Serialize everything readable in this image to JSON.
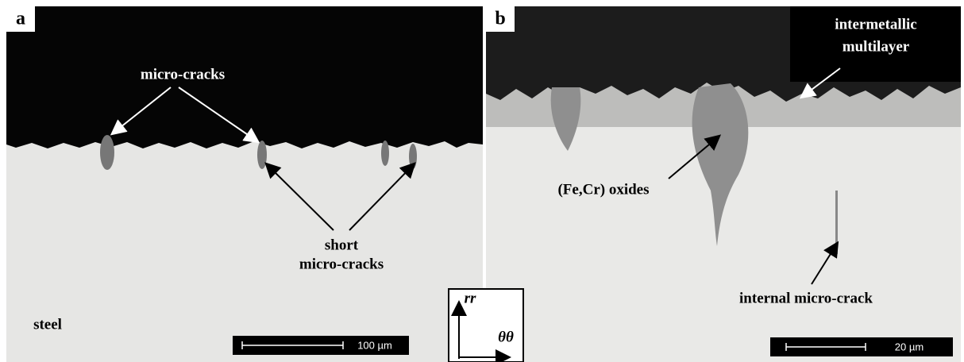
{
  "panels": [
    {
      "label": "a",
      "annotations": [
        {
          "lines": [
            "micro-cracks"
          ]
        },
        {
          "lines": [
            "short",
            "micro-cracks"
          ]
        },
        {
          "lines": [
            "steel"
          ]
        }
      ],
      "scale_bar": "100 µm"
    },
    {
      "label": "b",
      "annotations": [
        {
          "lines": [
            "intermetallic",
            "multilayer"
          ]
        },
        {
          "lines": [
            "(Fe,Cr) oxides"
          ]
        },
        {
          "lines": [
            "internal micro-crack"
          ]
        }
      ],
      "scale_bar": "20 µm"
    }
  ],
  "axes_inset": {
    "vertical": "rr",
    "horizontal": "θθ"
  }
}
